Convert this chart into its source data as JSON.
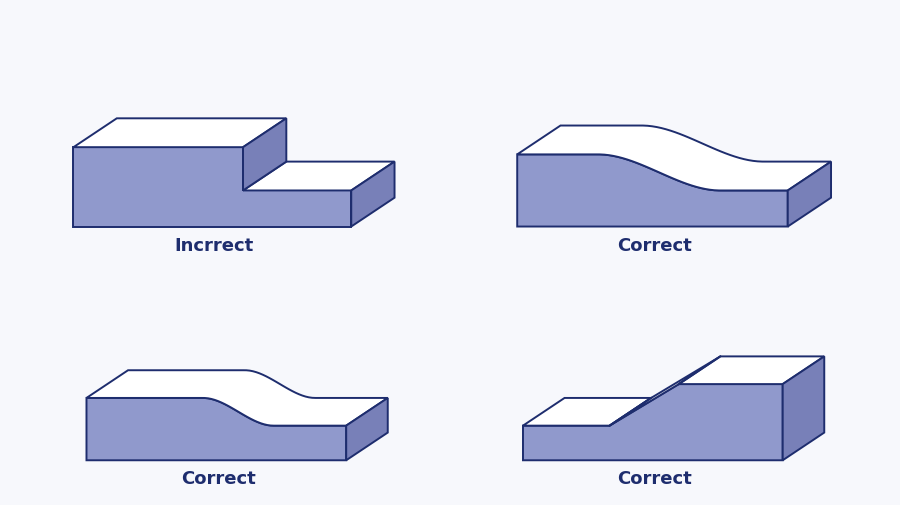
{
  "background_color": "#f7f8fc",
  "fill_color": "#9099cc",
  "fill_color_side": "#7880b8",
  "top_color": "#ffffff",
  "edge_color": "#1e2d6e",
  "edge_width": 1.4,
  "labels": {
    "top_left": "Incrrect",
    "top_right": "Correct",
    "bottom_left": "Correct",
    "bottom_right": "Correct"
  },
  "label_color": "#1e2d6e",
  "label_fontsize": 13,
  "label_fontweight": "bold"
}
